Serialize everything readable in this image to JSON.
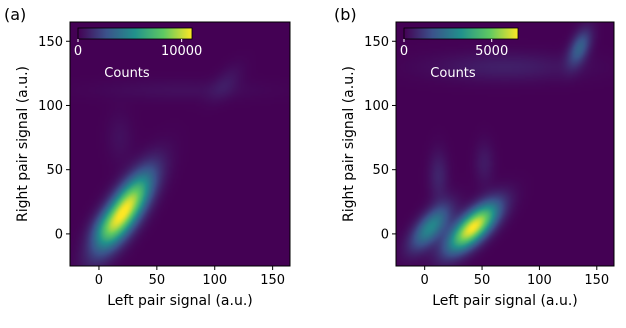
{
  "chart_data": [
    {
      "type": "heatmap",
      "panel_label": "(a)",
      "xlabel": "Left pair signal (a.u.)",
      "ylabel": "Right pair signal (a.u.)",
      "xlim": [
        -25,
        165
      ],
      "ylim": [
        -25,
        165
      ],
      "xticks": [
        0,
        50,
        100,
        150
      ],
      "yticks": [
        0,
        50,
        100,
        150
      ],
      "colorbar": {
        "label": "Counts",
        "min": 0,
        "max": 11000,
        "tick_labels": [
          "0",
          "10000"
        ],
        "tick_values": [
          0,
          10000
        ]
      },
      "colormap": [
        "#440154",
        "#3b528b",
        "#21918c",
        "#5ec962",
        "#fde725"
      ],
      "background_color": "#440154",
      "blobs": [
        {
          "x": 22,
          "y": 18,
          "sx": 16,
          "sy": 20,
          "rho": 0.75,
          "peak": 11000
        },
        {
          "x": 5,
          "y": 5,
          "sx": 9,
          "sy": 9,
          "rho": 0.3,
          "peak": 1400
        },
        {
          "x": 18,
          "y": 75,
          "sx": 8,
          "sy": 14,
          "rho": 0,
          "peak": 500
        },
        {
          "x": 110,
          "y": 118,
          "sx": 10,
          "sy": 10,
          "rho": 0.6,
          "peak": 700
        },
        {
          "x": 70,
          "y": 112,
          "sx": 50,
          "sy": 6,
          "rho": 0,
          "peak": 450
        }
      ]
    },
    {
      "type": "heatmap",
      "panel_label": "(b)",
      "xlabel": "Left pair signal (a.u.)",
      "ylabel": "Right pair signal (a.u.)",
      "xlim": [
        -25,
        165
      ],
      "ylim": [
        -25,
        165
      ],
      "xticks": [
        0,
        50,
        100,
        150
      ],
      "yticks": [
        0,
        50,
        100,
        150
      ],
      "colorbar": {
        "label": "Counts",
        "min": 0,
        "max": 6500,
        "tick_labels": [
          "0",
          "5000"
        ],
        "tick_values": [
          0,
          5000
        ]
      },
      "colormap": [
        "#440154",
        "#3b528b",
        "#21918c",
        "#5ec962",
        "#fde725"
      ],
      "background_color": "#440154",
      "blobs": [
        {
          "x": 42,
          "y": 5,
          "sx": 15,
          "sy": 13,
          "rho": 0.7,
          "peak": 6500
        },
        {
          "x": 5,
          "y": 5,
          "sx": 12,
          "sy": 12,
          "rho": 0.65,
          "peak": 3000
        },
        {
          "x": 135,
          "y": 145,
          "sx": 7,
          "sy": 10,
          "rho": 0.5,
          "peak": 2000
        },
        {
          "x": 12,
          "y": 45,
          "sx": 6,
          "sy": 14,
          "rho": 0,
          "peak": 700
        },
        {
          "x": 52,
          "y": 55,
          "sx": 6,
          "sy": 12,
          "rho": 0,
          "peak": 500
        },
        {
          "x": 70,
          "y": 130,
          "sx": 45,
          "sy": 8,
          "rho": 0,
          "peak": 600
        }
      ]
    }
  ]
}
